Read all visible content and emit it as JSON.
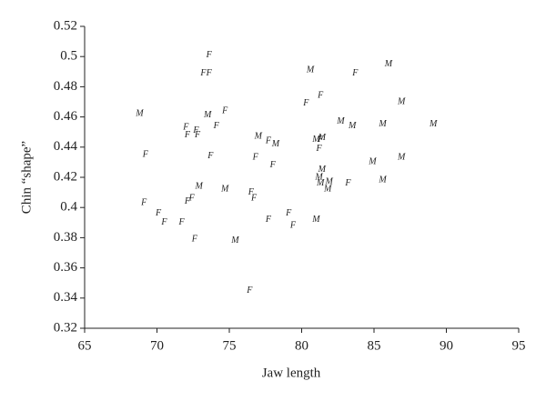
{
  "chart_data": {
    "type": "scatter",
    "x_label": "Jaw length",
    "y_label": "Chin “shape”",
    "xlim": [
      65,
      95
    ],
    "xticks": [
      65,
      70,
      75,
      80,
      85,
      90,
      95
    ],
    "ylim": [
      0.32,
      0.52
    ],
    "yticks": [
      0.32,
      0.34,
      0.36,
      0.38,
      0.4,
      0.42,
      0.44,
      0.46,
      0.48,
      0.5,
      0.52
    ],
    "series": [
      {
        "name": "F",
        "color": "#222222",
        "x": [
          73.6,
          73.2,
          73.6,
          74.7,
          72.0,
          72.7,
          74.1,
          72.1,
          72.8,
          69.2,
          73.7,
          76.8,
          78.0,
          77.7,
          80.3,
          81.3,
          83.7,
          81.2,
          69.1,
          70.1,
          70.5,
          71.7,
          72.1,
          72.4,
          72.6,
          76.5,
          76.7,
          77.7,
          79.1,
          79.4,
          83.2,
          76.4,
          81.3
        ],
        "values": [
          0.501,
          0.489,
          0.489,
          0.464,
          0.453,
          0.451,
          0.454,
          0.448,
          0.448,
          0.435,
          0.434,
          0.433,
          0.428,
          0.444,
          0.469,
          0.474,
          0.489,
          0.439,
          0.403,
          0.396,
          0.39,
          0.39,
          0.404,
          0.406,
          0.379,
          0.41,
          0.406,
          0.392,
          0.396,
          0.388,
          0.416,
          0.345,
          0.445
        ]
      },
      {
        "name": "M",
        "color": "#222222",
        "x": [
          68.8,
          73.5,
          72.9,
          74.7,
          75.4,
          77.0,
          78.2,
          80.6,
          86.0,
          86.9,
          82.7,
          83.5,
          85.6,
          89.1,
          81.0,
          81.4,
          81.2,
          81.3,
          81.9,
          81.8,
          84.9,
          86.9,
          85.6,
          81.0,
          81.4
        ],
        "values": [
          0.462,
          0.461,
          0.414,
          0.412,
          0.378,
          0.447,
          0.442,
          0.491,
          0.495,
          0.47,
          0.457,
          0.454,
          0.455,
          0.455,
          0.445,
          0.446,
          0.42,
          0.416,
          0.417,
          0.412,
          0.43,
          0.433,
          0.418,
          0.392,
          0.425
        ]
      }
    ]
  }
}
